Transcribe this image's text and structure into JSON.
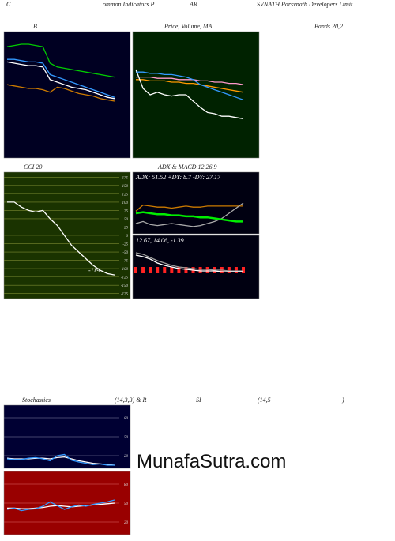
{
  "header": {
    "line1": [
      "C",
      "ommon Indicators P",
      "AR",
      "SVNATH Parsvnath Developers Limit"
    ],
    "line2": [
      "B",
      "Price, Volume, MA",
      "Bands 20,2"
    ],
    "stoch_line": [
      "Stochastics",
      "(14,3,3) & R",
      "SI",
      "(14,5",
      ")"
    ],
    "watermark": "MunafaSutra.com"
  },
  "chart_data": [
    {
      "type": "line",
      "background": "#000022",
      "ylim": [
        0,
        100
      ],
      "series": [
        {
          "color": "#00cc00",
          "values": [
            88,
            89,
            90,
            90,
            89,
            88,
            75,
            72,
            71,
            70,
            69,
            68,
            67,
            66,
            65,
            64
          ]
        },
        {
          "color": "#3399ff",
          "values": [
            78,
            78,
            77,
            76,
            76,
            75,
            66,
            64,
            62,
            60,
            58,
            56,
            54,
            52,
            50,
            48
          ]
        },
        {
          "color": "#ffffff",
          "values": [
            76,
            75,
            74,
            73,
            73,
            72,
            62,
            60,
            58,
            56,
            55,
            54,
            52,
            50,
            48,
            47
          ]
        },
        {
          "color": "#cc7a00",
          "values": [
            58,
            57,
            56,
            55,
            55,
            54,
            52,
            56,
            55,
            53,
            51,
            50,
            49,
            47,
            46,
            45
          ]
        }
      ]
    },
    {
      "type": "line",
      "background": "#002200",
      "ylim": [
        0,
        100
      ],
      "series": [
        {
          "color": "#ff99cc",
          "values": [
            64,
            64,
            64,
            63,
            63,
            63,
            62,
            62,
            62,
            61,
            61,
            60,
            60,
            59,
            59,
            58
          ]
        },
        {
          "color": "#ff9900",
          "values": [
            62,
            62,
            61,
            61,
            61,
            60,
            60,
            59,
            59,
            58,
            57,
            56,
            55,
            54,
            53,
            52
          ]
        },
        {
          "color": "#3399ff",
          "values": [
            68,
            68,
            67,
            67,
            66,
            66,
            65,
            64,
            62,
            58,
            56,
            54,
            52,
            50,
            48,
            46
          ]
        },
        {
          "color": "#ffffff",
          "values": [
            70,
            55,
            50,
            52,
            50,
            49,
            50,
            50,
            45,
            40,
            36,
            35,
            33,
            33,
            32,
            31
          ]
        }
      ]
    },
    {
      "type": "line",
      "title": "CCI 20",
      "background": "#1a3300",
      "grid": true,
      "grid_color": "#7a8a30",
      "ylim": [
        -190,
        190
      ],
      "yticks": [
        175,
        150,
        125,
        100,
        75,
        50,
        25,
        0,
        -25,
        -50,
        -75,
        -100,
        -125,
        -150,
        -175
      ],
      "annotation": "-119",
      "series": [
        {
          "color": "#ffffff",
          "values": [
            100,
            100,
            85,
            75,
            70,
            75,
            50,
            30,
            0,
            -30,
            -50,
            -70,
            -90,
            -105,
            -115,
            -119
          ]
        }
      ]
    },
    {
      "type": "line",
      "title": "ADX  & MACD 12,26,9",
      "background": "#000011",
      "ylim": [
        0,
        60
      ],
      "annotation": "ADX: 51.52  +DY: 8.7  -DY: 27.17",
      "series": [
        {
          "color": "#cc7a00",
          "values": [
            22,
            28,
            27,
            26,
            26,
            25,
            26,
            27,
            26,
            26,
            27,
            27,
            27,
            27,
            27,
            27
          ]
        },
        {
          "color": "#aaaaaa",
          "values": [
            10,
            12,
            9,
            8,
            9,
            10,
            9,
            8,
            7,
            8,
            10,
            12,
            15,
            20,
            25,
            30
          ]
        },
        {
          "color": "#00ee00",
          "width": 2.5,
          "values": [
            20,
            21,
            20,
            19,
            19,
            18,
            18,
            17,
            17,
            16,
            16,
            15,
            14,
            13,
            12,
            12
          ]
        }
      ]
    },
    {
      "type": "line",
      "background": "#000011",
      "ylim": [
        -40,
        40
      ],
      "annotation": "12.67, 14.06, -1.39",
      "histogram": {
        "color": "#ff2222",
        "values": [
          -8,
          -8,
          -8,
          -8,
          -8,
          -8,
          -8,
          -8,
          -8,
          -8,
          -8,
          -8,
          -8,
          -8,
          -8,
          -8
        ]
      },
      "series": [
        {
          "color": "#999999",
          "values": [
            18,
            16,
            12,
            8,
            5,
            2,
            0,
            -1,
            -2,
            -3,
            -3,
            -4,
            -4,
            -5,
            -5,
            -5
          ]
        },
        {
          "color": "#ffffff",
          "values": [
            15,
            13,
            10,
            5,
            2,
            0,
            -2,
            -3,
            -4,
            -5,
            -5,
            -5,
            -6,
            -6,
            -6,
            -6
          ]
        }
      ]
    },
    {
      "type": "line",
      "background": "#000033",
      "grid": true,
      "grid_color": "#8888aa",
      "ylim": [
        0,
        100
      ],
      "yticks": [
        80,
        50,
        20
      ],
      "series": [
        {
          "color": "#ffffff",
          "values": [
            16,
            15,
            15,
            15,
            16,
            16,
            15,
            17,
            18,
            15,
            12,
            10,
            8,
            7,
            6,
            5
          ]
        },
        {
          "color": "#3399ff",
          "values": [
            15,
            14,
            14,
            16,
            17,
            15,
            12,
            20,
            22,
            13,
            10,
            8,
            6,
            7,
            5,
            5
          ]
        }
      ]
    },
    {
      "type": "line",
      "background": "#990000",
      "grid": true,
      "grid_color": "#dd6666",
      "ylim": [
        0,
        100
      ],
      "yticks": [
        80,
        50,
        20
      ],
      "series": [
        {
          "color": "#ffffff",
          "values": [
            42,
            42,
            41,
            41,
            42,
            43,
            45,
            46,
            45,
            44,
            45,
            46,
            47,
            48,
            49,
            50
          ]
        },
        {
          "color": "#3399ff",
          "values": [
            40,
            42,
            38,
            40,
            41,
            45,
            52,
            46,
            40,
            44,
            47,
            45,
            48,
            50,
            52,
            55
          ]
        }
      ]
    }
  ]
}
